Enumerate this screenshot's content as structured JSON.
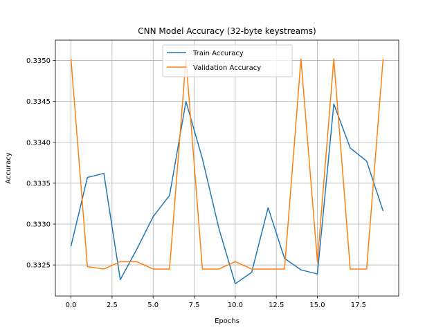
{
  "chart_data": {
    "type": "line",
    "title": "CNN Model Accuracy (32-byte keystreams)",
    "xlabel": "Epochs",
    "ylabel": "Accuracy",
    "xlim": [
      -0.95,
      19.95
    ],
    "ylim": [
      0.33212,
      0.33525
    ],
    "xticks": [
      0.0,
      2.5,
      5.0,
      7.5,
      10.0,
      12.5,
      15.0,
      17.5
    ],
    "xtick_labels": [
      "0.0",
      "2.5",
      "5.0",
      "7.5",
      "10.0",
      "12.5",
      "15.0",
      "17.5"
    ],
    "yticks": [
      0.3325,
      0.333,
      0.3335,
      0.334,
      0.3345,
      0.335
    ],
    "ytick_labels": [
      "0.3325",
      "0.3330",
      "0.3335",
      "0.3340",
      "0.3345",
      "0.3350"
    ],
    "grid": true,
    "legend_position": "upper center",
    "x": [
      0,
      1,
      2,
      3,
      4,
      5,
      6,
      7,
      8,
      9,
      10,
      11,
      12,
      13,
      14,
      15,
      16,
      17,
      18,
      19
    ],
    "series": [
      {
        "name": "Train Accuracy",
        "color": "#1f77b4",
        "values": [
          0.33273,
          0.33357,
          0.33362,
          0.33232,
          0.33269,
          0.33309,
          0.33335,
          0.3345,
          0.3338,
          0.33295,
          0.33227,
          0.33241,
          0.3332,
          0.33258,
          0.33244,
          0.33239,
          0.33447,
          0.33393,
          0.33377,
          0.33316
        ]
      },
      {
        "name": "Validation Accuracy",
        "color": "#ff7f0e",
        "values": [
          0.33502,
          0.33248,
          0.33245,
          0.33254,
          0.33254,
          0.33245,
          0.33245,
          0.33502,
          0.33245,
          0.33245,
          0.33254,
          0.33245,
          0.33245,
          0.33245,
          0.33502,
          0.33254,
          0.33502,
          0.33245,
          0.33245,
          0.33502
        ]
      }
    ]
  }
}
